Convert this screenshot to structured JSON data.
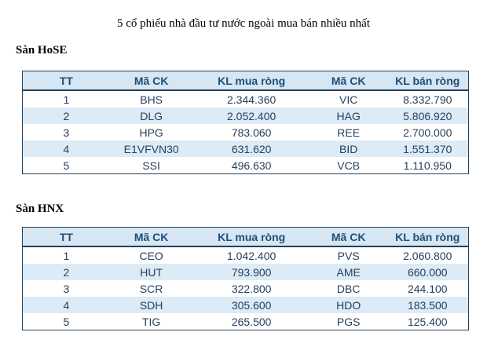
{
  "page": {
    "title": "5 cổ phiếu nhà đầu tư nước ngoài mua bán nhiều nhất"
  },
  "colors": {
    "header_bg": "#d6e6f2",
    "alt_row_bg": "#dcebf5",
    "header_text": "#1f4e79",
    "data_text": "#27405f",
    "border": "#24405c"
  },
  "column_widths_pct": [
    19.6,
    18.6,
    26.3,
    17.2,
    18.3
  ],
  "tables": [
    {
      "section": "Sàn HoSE",
      "columns": [
        "TT",
        "Mã CK",
        "KL mua ròng",
        "Mã CK",
        "KL bán ròng"
      ],
      "rows": [
        [
          "1",
          "BHS",
          "2.344.360",
          "VIC",
          "8.332.790"
        ],
        [
          "2",
          "DLG",
          "2.052.400",
          "HAG",
          "5.806.920"
        ],
        [
          "3",
          "HPG",
          "783.060",
          "REE",
          "2.700.000"
        ],
        [
          "4",
          "E1VFVN30",
          "631.620",
          "BID",
          "1.551.370"
        ],
        [
          "5",
          "SSI",
          "496.630",
          "VCB",
          "1.110.950"
        ]
      ]
    },
    {
      "section": "Sàn HNX",
      "columns": [
        "TT",
        "Mã CK",
        "KL mua ròng",
        "Mã CK",
        "KL bán ròng"
      ],
      "rows": [
        [
          "1",
          "CEO",
          "1.042.400",
          "PVS",
          "2.060.800"
        ],
        [
          "2",
          "HUT",
          "793.900",
          "AME",
          "660.000"
        ],
        [
          "3",
          "SCR",
          "322.800",
          "DBC",
          "244.100"
        ],
        [
          "4",
          "SDH",
          "305.600",
          "HDO",
          "183.500"
        ],
        [
          "5",
          "TIG",
          "265.500",
          "PGS",
          "125.400"
        ]
      ]
    }
  ]
}
